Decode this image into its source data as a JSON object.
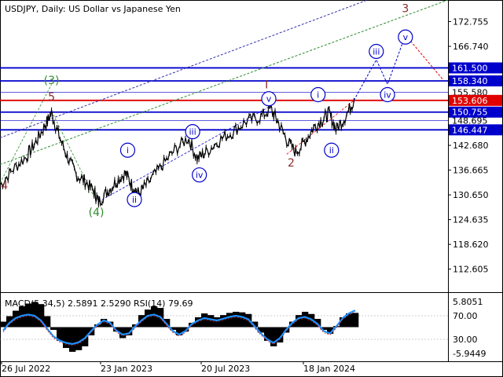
{
  "header": {
    "title": "USDJPY, Daily:  US Dollar vs Japanese Yen"
  },
  "colors": {
    "blue": "#0000cc",
    "red": "#e00000",
    "green": "#2e8b2e",
    "wave": "#8b2b2b",
    "purple": "#3333aa",
    "price": "#000000"
  },
  "chart_data": {
    "type": "line",
    "title": "USDJPY, Daily:  US Dollar vs Japanese Yen",
    "ylim": [
      107.0,
      178.0
    ],
    "x_labels": [
      "26 Jul 2022",
      "23 Jan 2023",
      "20 Jul 2023",
      "18 Jan 2024"
    ],
    "y_ticks": [
      "172.755",
      "166.740",
      "142.680",
      "136.665",
      "130.650",
      "124.635",
      "118.620",
      "112.605"
    ],
    "price_series": [
      {
        "t": 0.0,
        "v": 133.0
      },
      {
        "t": 0.03,
        "v": 137.0
      },
      {
        "t": 0.06,
        "v": 140.0
      },
      {
        "t": 0.08,
        "v": 143.5
      },
      {
        "t": 0.1,
        "v": 147.5
      },
      {
        "t": 0.115,
        "v": 150.5
      },
      {
        "t": 0.13,
        "v": 145.5
      },
      {
        "t": 0.15,
        "v": 140.0
      },
      {
        "t": 0.17,
        "v": 135.5
      },
      {
        "t": 0.19,
        "v": 134.0
      },
      {
        "t": 0.21,
        "v": 131.5
      },
      {
        "t": 0.22,
        "v": 129.0
      },
      {
        "t": 0.24,
        "v": 131.5
      },
      {
        "t": 0.26,
        "v": 134.0
      },
      {
        "t": 0.28,
        "v": 136.0
      },
      {
        "t": 0.295,
        "v": 133.0
      },
      {
        "t": 0.31,
        "v": 131.0
      },
      {
        "t": 0.33,
        "v": 133.5
      },
      {
        "t": 0.36,
        "v": 137.5
      },
      {
        "t": 0.39,
        "v": 141.5
      },
      {
        "t": 0.42,
        "v": 144.5
      },
      {
        "t": 0.44,
        "v": 139.5
      },
      {
        "t": 0.46,
        "v": 141.0
      },
      {
        "t": 0.49,
        "v": 144.0
      },
      {
        "t": 0.52,
        "v": 146.0
      },
      {
        "t": 0.55,
        "v": 148.5
      },
      {
        "t": 0.58,
        "v": 149.5
      },
      {
        "t": 0.605,
        "v": 151.5
      },
      {
        "t": 0.62,
        "v": 148.5
      },
      {
        "t": 0.64,
        "v": 144.0
      },
      {
        "t": 0.66,
        "v": 141.0
      },
      {
        "t": 0.68,
        "v": 143.5
      },
      {
        "t": 0.7,
        "v": 147.0
      },
      {
        "t": 0.72,
        "v": 149.0
      },
      {
        "t": 0.735,
        "v": 150.5
      },
      {
        "t": 0.75,
        "v": 146.5
      },
      {
        "t": 0.77,
        "v": 149.5
      },
      {
        "t": 0.79,
        "v": 153.6
      }
    ],
    "levels": [
      {
        "value": 161.5,
        "label": "161.500",
        "color": "#0000cc"
      },
      {
        "value": 158.34,
        "label": "158.340",
        "color": "#0000cc"
      },
      {
        "value": 155.58,
        "label": "155.580",
        "color": "#0000cc"
      },
      {
        "value": 153.606,
        "label": "153.606",
        "color": "#e00000"
      },
      {
        "value": 150.755,
        "label": "150.755",
        "color": "#0000cc"
      },
      {
        "value": 148.695,
        "label": "148.695",
        "color": "#0000cc"
      },
      {
        "value": 146.447,
        "label": "146.447",
        "color": "#0000cc"
      }
    ],
    "wave_labels": [
      {
        "t": 0.01,
        "v": 133.0,
        "text": "4",
        "style": "red"
      },
      {
        "t": 0.115,
        "v": 154.5,
        "text": "5",
        "style": "red"
      },
      {
        "t": 0.115,
        "v": 158.5,
        "text": "(3)",
        "style": "green"
      },
      {
        "t": 0.215,
        "v": 126.5,
        "text": "(4)",
        "style": "green"
      },
      {
        "t": 0.595,
        "v": 157.5,
        "text": "I",
        "style": "red"
      },
      {
        "t": 0.65,
        "v": 138.5,
        "text": "2",
        "style": "red"
      },
      {
        "t": 0.905,
        "v": 176.0,
        "text": "3",
        "style": "red"
      },
      {
        "t": 0.285,
        "v": 141.5,
        "text": "i",
        "style": "circle"
      },
      {
        "t": 0.3,
        "v": 129.5,
        "text": "ii",
        "style": "circle"
      },
      {
        "t": 0.43,
        "v": 146.0,
        "text": "iii",
        "style": "circle"
      },
      {
        "t": 0.445,
        "v": 135.5,
        "text": "iv",
        "style": "circle"
      },
      {
        "t": 0.6,
        "v": 154.0,
        "text": "v",
        "style": "circle"
      },
      {
        "t": 0.71,
        "v": 155.0,
        "text": "i",
        "style": "circle"
      },
      {
        "t": 0.74,
        "v": 141.5,
        "text": "ii",
        "style": "circle"
      },
      {
        "t": 0.84,
        "v": 165.5,
        "text": "iii",
        "style": "circle"
      },
      {
        "t": 0.865,
        "v": 155.0,
        "text": "iv",
        "style": "circle"
      },
      {
        "t": 0.905,
        "v": 169.0,
        "text": "v",
        "style": "circle"
      }
    ],
    "projection": [
      {
        "t": 0.79,
        "v": 153.6
      },
      {
        "t": 0.84,
        "v": 163.5
      },
      {
        "t": 0.865,
        "v": 157.5
      },
      {
        "t": 0.905,
        "v": 169.5
      },
      {
        "t": 0.99,
        "v": 158.5
      }
    ],
    "macd": {
      "label": "MACD(5,34,5) 2.5891 2.5290 RSI(14) 79.69",
      "ticks": [
        "5.8051",
        "70.00",
        "30.00",
        "-5.9449"
      ],
      "histogram": [
        1.0,
        2.0,
        3.0,
        3.8,
        4.3,
        4.6,
        4.2,
        2.0,
        -0.5,
        -2.5,
        -3.8,
        -4.5,
        -4.2,
        -3.5,
        -1.5,
        0.5,
        1.5,
        1.0,
        -0.8,
        -2.0,
        -1.5,
        0.5,
        2.2,
        3.2,
        3.8,
        3.5,
        1.5,
        -0.5,
        -1.5,
        -0.8,
        0.8,
        1.8,
        2.5,
        2.2,
        1.8,
        2.2,
        2.6,
        2.8,
        2.7,
        2.4,
        1.0,
        -1.0,
        -2.5,
        -3.5,
        -2.8,
        -1.0,
        1.0,
        2.2,
        2.8,
        2.4,
        1.5,
        -0.5,
        -1.2,
        0.2,
        1.8,
        2.5,
        2.6
      ],
      "rsi": [
        45,
        58,
        66,
        70,
        72,
        70,
        62,
        48,
        35,
        28,
        24,
        22,
        25,
        32,
        44,
        55,
        62,
        58,
        45,
        38,
        40,
        52,
        62,
        70,
        72,
        68,
        56,
        44,
        38,
        44,
        56,
        62,
        66,
        64,
        62,
        65,
        68,
        70,
        68,
        64,
        52,
        40,
        30,
        24,
        32,
        46,
        58,
        66,
        68,
        64,
        56,
        44,
        40,
        52,
        66,
        74,
        79
      ]
    }
  }
}
